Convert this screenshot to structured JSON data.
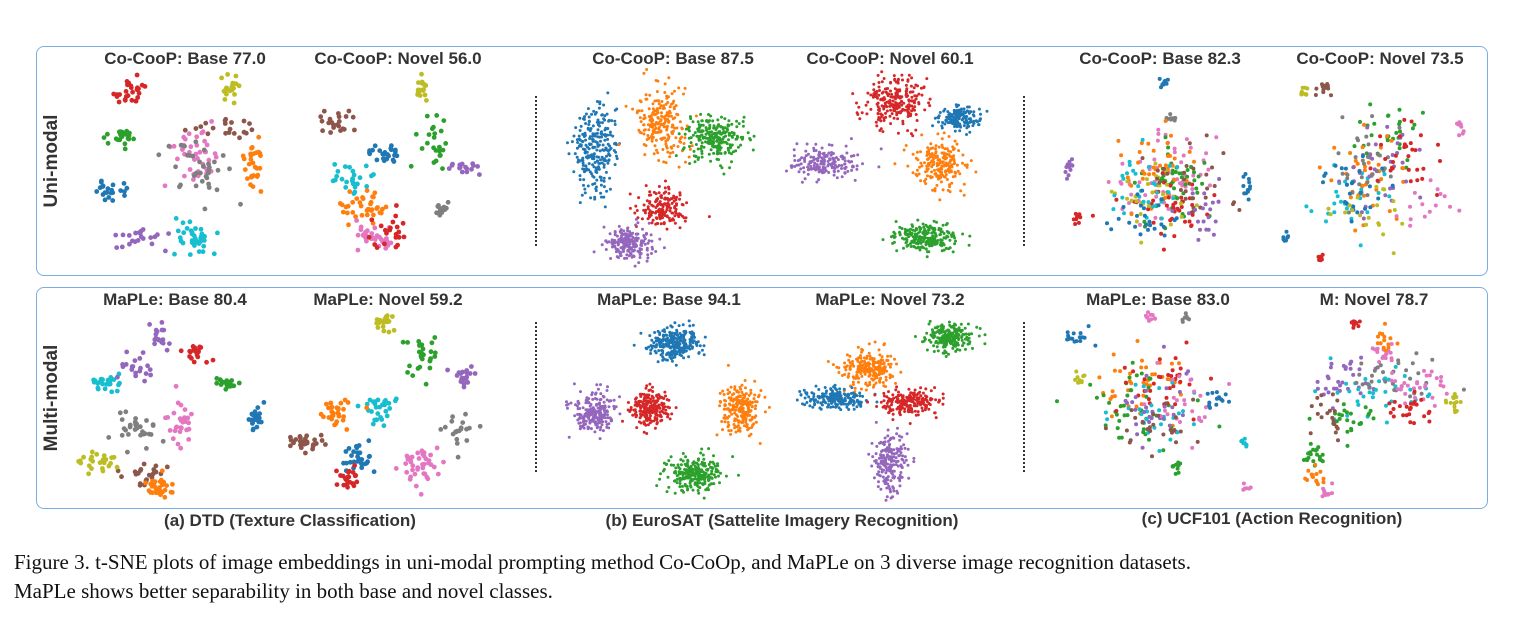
{
  "rows": [
    {
      "label": "Uni-modal"
    },
    {
      "label": "Multi-modal"
    }
  ],
  "datasets": [
    {
      "caption": "(a) DTD (Texture Classification)"
    },
    {
      "caption": "(b) EuroSAT (Sattelite Imagery Recognition)"
    },
    {
      "caption": "(c) UCF101 (Action Recognition)"
    }
  ],
  "plots": [
    {
      "title": "Co-CooP: Base 77.0",
      "method": "Co-CooP",
      "split": "Base",
      "score": 77.0
    },
    {
      "title": "Co-CooP: Novel  56.0",
      "method": "Co-CooP",
      "split": "Novel",
      "score": 56.0
    },
    {
      "title": "Co-CooP: Base 87.5",
      "method": "Co-CooP",
      "split": "Base",
      "score": 87.5
    },
    {
      "title": "Co-CooP: Novel  60.1",
      "method": "Co-CooP",
      "split": "Novel",
      "score": 60.1
    },
    {
      "title": "Co-CooP: Base 82.3",
      "method": "Co-CooP",
      "split": "Base",
      "score": 82.3
    },
    {
      "title": "Co-CooP: Novel  73.5",
      "method": "Co-CooP",
      "split": "Novel",
      "score": 73.5
    },
    {
      "title": "MaPLe: Base 80.4",
      "method": "MaPLe",
      "split": "Base",
      "score": 80.4
    },
    {
      "title": "MaPLe: Novel 59.2",
      "method": "MaPLe",
      "split": "Novel",
      "score": 59.2
    },
    {
      "title": "MaPLe: Base 94.1",
      "method": "MaPLe",
      "split": "Base",
      "score": 94.1
    },
    {
      "title": "MaPLe: Novel 73.2",
      "method": "MaPLe",
      "split": "Novel",
      "score": 73.2
    },
    {
      "title": "MaPLe: Base 83.0",
      "method": "MaPLe",
      "split": "Base",
      "score": 83.0
    },
    {
      "title": "M: Novel 78.7",
      "method": "M",
      "split": "Novel",
      "score": 78.7
    }
  ],
  "class_colors": [
    "#1f77b4",
    "#ff7f0e",
    "#2ca02c",
    "#d62728",
    "#9467bd",
    "#8c564b",
    "#e377c2",
    "#7f7f7f",
    "#bcbd22",
    "#17becf"
  ],
  "caption": {
    "line1": "Figure 3. t-SNE plots of image embeddings in uni-modal prompting method Co-CoOp, and MaPLe on 3 diverse image recognition datasets.",
    "line2": "MaPLe shows better separability in both base and novel classes."
  }
}
